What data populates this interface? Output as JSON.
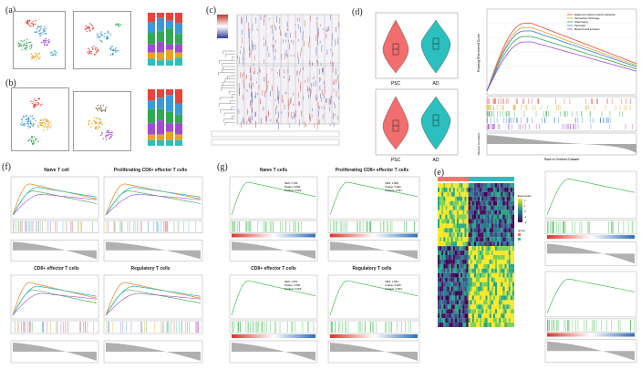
{
  "figure": {
    "panel_labels": [
      "(a)",
      "(b)",
      "(c)",
      "(d)",
      "(f)",
      "(g)",
      "(e)"
    ]
  },
  "panel_d": {
    "groups": [
      "PSC",
      "AD"
    ],
    "group_colors": [
      "#f26d6d",
      "#2bbfbf"
    ]
  },
  "panel_f": {
    "titles": [
      "Naive T cell",
      "Proliferating CD8+ effector T cells",
      "CD8+ effector T cells",
      "Regulatory T cells"
    ]
  },
  "panel_g": {
    "titles": [
      "Naive T cells",
      "Proliferating CD8+ effector T cells",
      "CD8+ effector T cells",
      "Regulatory T cells"
    ],
    "stats": [
      [
        "NES: 1.783",
        "Pvalue: 0.000",
        "P.adjust: 0.002"
      ],
      [
        "NES: 1.688",
        "Pvalue: 0.000",
        "P.adjust: 0.001"
      ],
      [
        "NES: 1.801",
        "Pvalue: 0.000",
        "P.adjust: 0.003"
      ],
      [
        "NES: 1.653",
        "Pvalue: 0.000",
        "P.adjust: 0.004"
      ]
    ]
  },
  "gsea_right": {
    "ylabel": "Running Enrichment Score",
    "xlabel": "Rank in Ordered Dataset",
    "ylabel2": "Ranked List Metric",
    "legend": [
      "Epidermal cytokine receptor interaction",
      "Neuroactive cell lineage",
      "Inflammatory",
      "Pancreatic",
      "Mesenchymal activation"
    ],
    "legend_colors": [
      "#e8443b",
      "#e8a325",
      "#32a852",
      "#2f7fd6",
      "#a04ad6"
    ]
  },
  "heatmap_e": {
    "legend_title": "Expression",
    "legend_ticks": [
      "2",
      "1",
      "0",
      "-1",
      "-2"
    ],
    "group_legend": "group"
  },
  "colors": {
    "clusters": [
      "#e8443b",
      "#3a9ad9",
      "#32a852",
      "#a04ad6",
      "#e8a325",
      "#2bbfbf",
      "#d65a9c",
      "#7d6b3f"
    ]
  }
}
